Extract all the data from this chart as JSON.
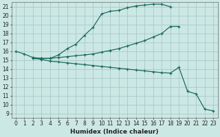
{
  "xlabel": "Humidex (Indice chaleur)",
  "bg_color": "#cce8e4",
  "grid_color": "#aacccc",
  "line_color": "#1a6b5a",
  "xlim": [
    -0.5,
    23.5
  ],
  "ylim": [
    8.5,
    21.5
  ],
  "xticks": [
    0,
    1,
    2,
    3,
    4,
    5,
    6,
    7,
    8,
    9,
    10,
    11,
    12,
    13,
    14,
    15,
    16,
    17,
    18,
    19,
    20,
    21,
    22,
    23
  ],
  "yticks": [
    9,
    10,
    11,
    12,
    13,
    14,
    15,
    16,
    17,
    18,
    19,
    20,
    21
  ],
  "curve1_x": [
    0,
    1,
    2,
    3,
    4,
    5,
    6,
    7,
    8,
    9,
    10,
    11,
    12,
    13,
    14,
    15,
    16,
    17,
    18
  ],
  "curve1_y": [
    16.0,
    15.7,
    15.3,
    15.2,
    15.2,
    15.6,
    16.3,
    16.8,
    17.8,
    18.7,
    20.2,
    20.5,
    20.6,
    20.9,
    21.1,
    21.2,
    21.3,
    21.3,
    21.0
  ],
  "curve2_x": [
    2,
    3,
    4,
    5,
    6,
    7,
    8,
    9,
    10,
    11,
    12,
    13,
    14,
    15,
    16,
    17,
    18,
    19
  ],
  "curve2_y": [
    15.2,
    15.2,
    15.2,
    15.3,
    15.4,
    15.5,
    15.6,
    15.7,
    15.9,
    16.1,
    16.3,
    16.6,
    16.9,
    17.2,
    17.6,
    18.0,
    18.8,
    18.8
  ],
  "curve3_x": [
    2,
    3,
    4,
    5,
    6,
    7,
    8,
    9,
    10,
    11,
    12,
    13,
    14,
    15,
    16,
    17,
    18,
    19,
    20,
    21,
    22,
    23
  ],
  "curve3_y": [
    15.2,
    15.1,
    14.9,
    14.8,
    14.7,
    14.6,
    14.5,
    14.4,
    14.3,
    14.2,
    14.1,
    14.0,
    13.9,
    13.8,
    13.7,
    13.6,
    13.55,
    14.2,
    11.5,
    11.2,
    9.5,
    9.3
  ]
}
